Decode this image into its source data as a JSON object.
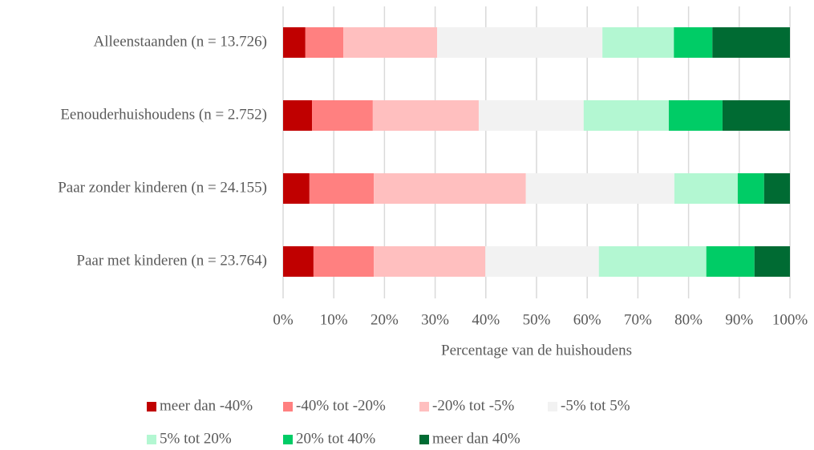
{
  "chart_data": {
    "type": "stacked_barh",
    "xlabel": "Percentage van de huishoudens",
    "categories": [
      "Alleenstaanden (n = 13.726)",
      "Eenouderhuishoudens (n = 2.752)",
      "Paar zonder kinderen (n = 24.155)",
      "Paar met kinderen (n = 23.764)"
    ],
    "series": [
      {
        "name": "meer dan -40%",
        "color": "#c00000",
        "values": [
          4.4,
          5.7,
          5.2,
          6.0
        ]
      },
      {
        "name": "-40% tot -20%",
        "color": "#ff8080",
        "values": [
          7.5,
          12.0,
          12.7,
          11.9
        ]
      },
      {
        "name": "-20% tot -5%",
        "color": "#ffbfbf",
        "values": [
          18.5,
          20.9,
          30.0,
          22.0
        ]
      },
      {
        "name": "-5% tot 5%",
        "color": "#f2f2f2",
        "values": [
          32.6,
          20.7,
          29.3,
          22.4
        ]
      },
      {
        "name": "5% tot 20%",
        "color": "#b3f7d2",
        "values": [
          14.1,
          16.8,
          12.5,
          21.2
        ]
      },
      {
        "name": "20% tot 40%",
        "color": "#00cc66",
        "values": [
          7.6,
          10.6,
          5.2,
          9.5
        ]
      },
      {
        "name": "meer dan 40%",
        "color": "#006b33",
        "values": [
          15.3,
          13.3,
          5.1,
          7.0
        ]
      }
    ],
    "xlim": [
      0,
      100
    ],
    "xticks": [
      {
        "value": 0,
        "label": "0%"
      },
      {
        "value": 10,
        "label": "10%"
      },
      {
        "value": 20,
        "label": "20%"
      },
      {
        "value": 30,
        "label": "30%"
      },
      {
        "value": 40,
        "label": "40%"
      },
      {
        "value": 50,
        "label": "50%"
      },
      {
        "value": 60,
        "label": "60%"
      },
      {
        "value": 70,
        "label": "70%"
      },
      {
        "value": 80,
        "label": "80%"
      },
      {
        "value": 90,
        "label": "90%"
      },
      {
        "value": 100,
        "label": "100%"
      }
    ],
    "grid": true,
    "legend": "bottom"
  }
}
